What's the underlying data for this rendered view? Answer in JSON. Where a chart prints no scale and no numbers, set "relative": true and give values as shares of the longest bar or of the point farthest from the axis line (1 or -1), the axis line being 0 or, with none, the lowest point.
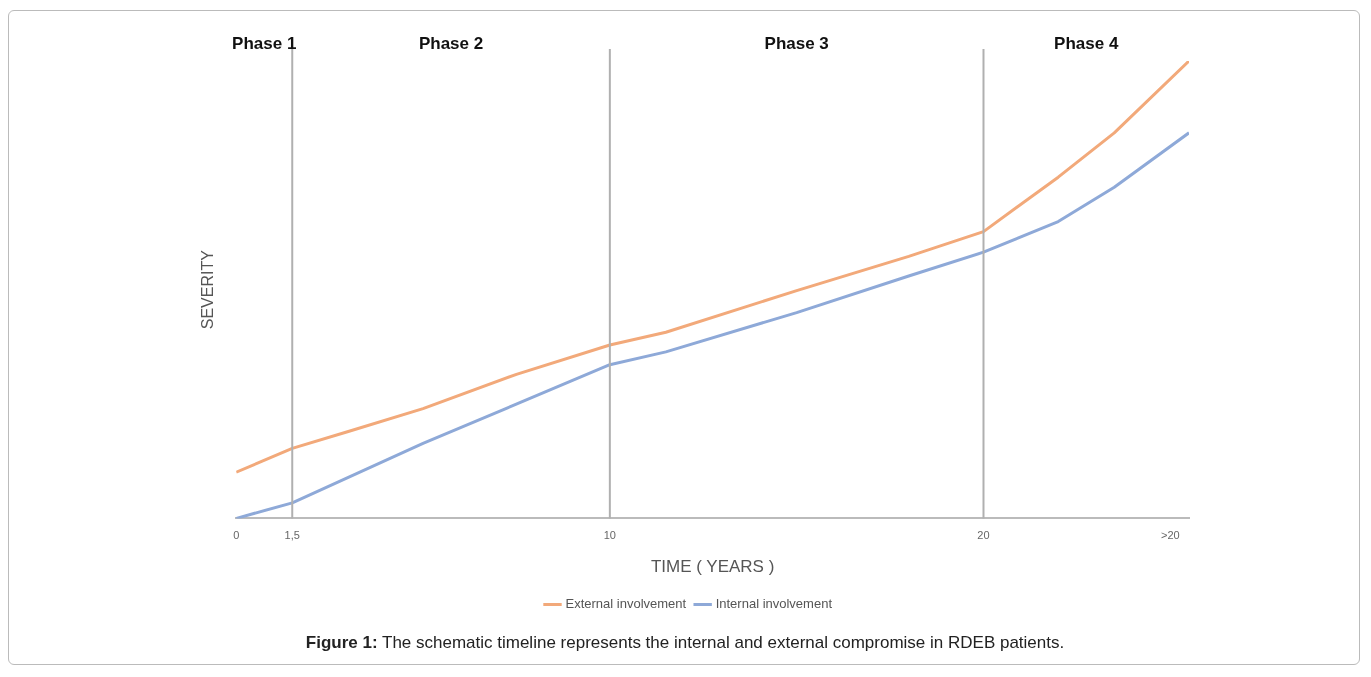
{
  "chart_data": {
    "type": "line",
    "relative": true,
    "xlabel": "TIME ( YEARS )",
    "ylabel": "SEVERITY",
    "xlim": [
      0,
      25.5
    ],
    "xticks": [
      0,
      {
        "value": 1.5,
        "label": "1,5"
      },
      10,
      20,
      {
        "value": 25,
        "label": ">20"
      }
    ],
    "tick_labels": "x",
    "grid": false,
    "legend": "bottom",
    "marker": "none",
    "line_style": "solid",
    "ref_lines": [
      {
        "axis": "x",
        "value": 1.5,
        "color": "#b0b0b0"
      },
      {
        "axis": "x",
        "value": 10,
        "color": "#b0b0b0"
      },
      {
        "axis": "x",
        "value": 20,
        "color": "#b0b0b0"
      }
    ],
    "series": [
      {
        "name": "External involvement",
        "color": "#f2a97a",
        "x": [
          0,
          1.5,
          3,
          5,
          7.5,
          10,
          11.5,
          15,
          18,
          20,
          22,
          23.5,
          25.5
        ],
        "values": [
          0.101,
          0.153,
          0.19,
          0.24,
          0.315,
          0.379,
          0.407,
          0.498,
          0.573,
          0.627,
          0.746,
          0.843,
          1
        ]
      },
      {
        "name": "Internal involvement",
        "color": "#8ea9d8",
        "x": [
          0,
          1.5,
          5,
          10,
          11.5,
          15,
          18,
          20,
          22,
          23.5,
          25.5
        ],
        "values": [
          0,
          0.034,
          0.164,
          0.336,
          0.364,
          0.45,
          0.53,
          0.582,
          0.649,
          0.724,
          0.843
        ]
      }
    ],
    "annotations": [
      "Phase 1",
      "Phase 2",
      "Phase 3",
      "Phase 4",
      "Figure 1: The schematic timeline represents the internal and external compromise in RDEB patients."
    ]
  }
}
